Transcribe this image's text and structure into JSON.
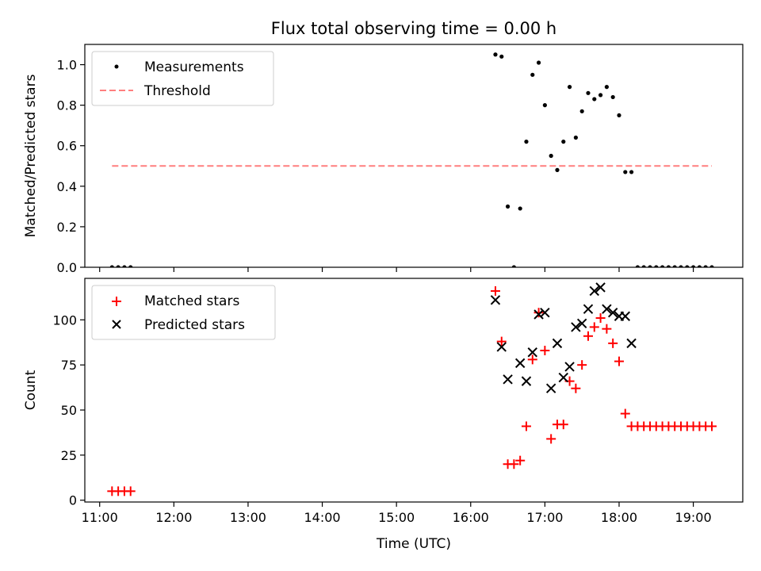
{
  "title": "Flux total observing time = 0.00 h",
  "xlabel": "Time (UTC)",
  "colors": {
    "measurement": "#000000",
    "threshold": "#ff7f7f",
    "matched": "#ff0000",
    "predicted": "#000000"
  },
  "chart_data": [
    {
      "type": "scatter",
      "ylabel": "Matched/Predicted stars",
      "xlim": [
        "10:48",
        "19:40"
      ],
      "ylim": [
        0,
        1.1
      ],
      "yticks": [
        0.0,
        0.2,
        0.4,
        0.6,
        0.8,
        1.0
      ],
      "ytick_labels": [
        "0.0",
        "0.2",
        "0.4",
        "0.6",
        "0.8",
        "1.0"
      ],
      "grid": false,
      "legend_position": "top-left",
      "series": [
        {
          "name": "Measurements",
          "kind": "dot",
          "points": [
            [
              "11:10",
              0
            ],
            [
              "11:15",
              0
            ],
            [
              "11:20",
              0
            ],
            [
              "11:25",
              0
            ],
            [
              "16:20",
              1.05
            ],
            [
              "16:25",
              1.04
            ],
            [
              "16:30",
              0.3
            ],
            [
              "16:35",
              0.0
            ],
            [
              "16:40",
              0.29
            ],
            [
              "16:45",
              0.62
            ],
            [
              "16:50",
              0.95
            ],
            [
              "16:55",
              1.01
            ],
            [
              "17:00",
              0.8
            ],
            [
              "17:05",
              0.55
            ],
            [
              "17:10",
              0.48
            ],
            [
              "17:15",
              0.62
            ],
            [
              "17:20",
              0.89
            ],
            [
              "17:25",
              0.64
            ],
            [
              "17:30",
              0.77
            ],
            [
              "17:35",
              0.86
            ],
            [
              "17:40",
              0.83
            ],
            [
              "17:45",
              0.85
            ],
            [
              "17:50",
              0.89
            ],
            [
              "17:55",
              0.84
            ],
            [
              "18:00",
              0.75
            ],
            [
              "18:05",
              0.47
            ],
            [
              "18:10",
              0.47
            ],
            [
              "18:15",
              0
            ],
            [
              "18:20",
              0
            ],
            [
              "18:25",
              0
            ],
            [
              "18:30",
              0
            ],
            [
              "18:35",
              0
            ],
            [
              "18:40",
              0
            ],
            [
              "18:45",
              0
            ],
            [
              "18:50",
              0
            ],
            [
              "18:55",
              0
            ],
            [
              "19:00",
              0
            ],
            [
              "19:05",
              0
            ],
            [
              "19:10",
              0
            ],
            [
              "19:15",
              0
            ]
          ]
        },
        {
          "name": "Threshold",
          "kind": "dashed-line",
          "points": [
            [
              "11:10",
              0.5
            ],
            [
              "19:15",
              0.5
            ]
          ]
        }
      ]
    },
    {
      "type": "scatter",
      "ylabel": "Count",
      "xlim": [
        "10:48",
        "19:40"
      ],
      "ylim": [
        -1,
        123
      ],
      "yticks": [
        0,
        25,
        50,
        75,
        100
      ],
      "ytick_labels": [
        "0",
        "25",
        "50",
        "75",
        "100"
      ],
      "xticks": [
        "11:00",
        "12:00",
        "13:00",
        "14:00",
        "15:00",
        "16:00",
        "17:00",
        "18:00",
        "19:00"
      ],
      "grid": false,
      "legend_position": "top-left",
      "series": [
        {
          "name": "Matched stars",
          "kind": "plus",
          "points": [
            [
              "11:10",
              5
            ],
            [
              "11:15",
              5
            ],
            [
              "11:20",
              5
            ],
            [
              "11:25",
              5
            ],
            [
              "16:20",
              116
            ],
            [
              "16:25",
              88
            ],
            [
              "16:30",
              20
            ],
            [
              "16:35",
              20
            ],
            [
              "16:40",
              22
            ],
            [
              "16:45",
              41
            ],
            [
              "16:50",
              78
            ],
            [
              "16:55",
              104
            ],
            [
              "17:00",
              83
            ],
            [
              "17:05",
              34
            ],
            [
              "17:10",
              42
            ],
            [
              "17:15",
              42
            ],
            [
              "17:20",
              66
            ],
            [
              "17:25",
              62
            ],
            [
              "17:30",
              75
            ],
            [
              "17:35",
              91
            ],
            [
              "17:40",
              96
            ],
            [
              "17:45",
              101
            ],
            [
              "17:50",
              95
            ],
            [
              "17:55",
              87
            ],
            [
              "18:00",
              77
            ],
            [
              "18:05",
              48
            ],
            [
              "18:10",
              41
            ],
            [
              "18:15",
              41
            ],
            [
              "18:20",
              41
            ],
            [
              "18:25",
              41
            ],
            [
              "18:30",
              41
            ],
            [
              "18:35",
              41
            ],
            [
              "18:40",
              41
            ],
            [
              "18:45",
              41
            ],
            [
              "18:50",
              41
            ],
            [
              "18:55",
              41
            ],
            [
              "19:00",
              41
            ],
            [
              "19:05",
              41
            ],
            [
              "19:10",
              41
            ],
            [
              "19:15",
              41
            ]
          ]
        },
        {
          "name": "Predicted stars",
          "kind": "cross",
          "points": [
            [
              "16:20",
              111
            ],
            [
              "16:25",
              85
            ],
            [
              "16:30",
              67
            ],
            [
              "16:40",
              76
            ],
            [
              "16:45",
              66
            ],
            [
              "16:50",
              82
            ],
            [
              "16:55",
              103
            ],
            [
              "17:00",
              104
            ],
            [
              "17:05",
              62
            ],
            [
              "17:10",
              87
            ],
            [
              "17:15",
              68
            ],
            [
              "17:20",
              74
            ],
            [
              "17:25",
              96
            ],
            [
              "17:30",
              98
            ],
            [
              "17:35",
              106
            ],
            [
              "17:40",
              116
            ],
            [
              "17:45",
              118
            ],
            [
              "17:50",
              106
            ],
            [
              "17:55",
              104
            ],
            [
              "18:00",
              102
            ],
            [
              "18:05",
              102
            ],
            [
              "18:10",
              87
            ]
          ]
        }
      ]
    }
  ]
}
